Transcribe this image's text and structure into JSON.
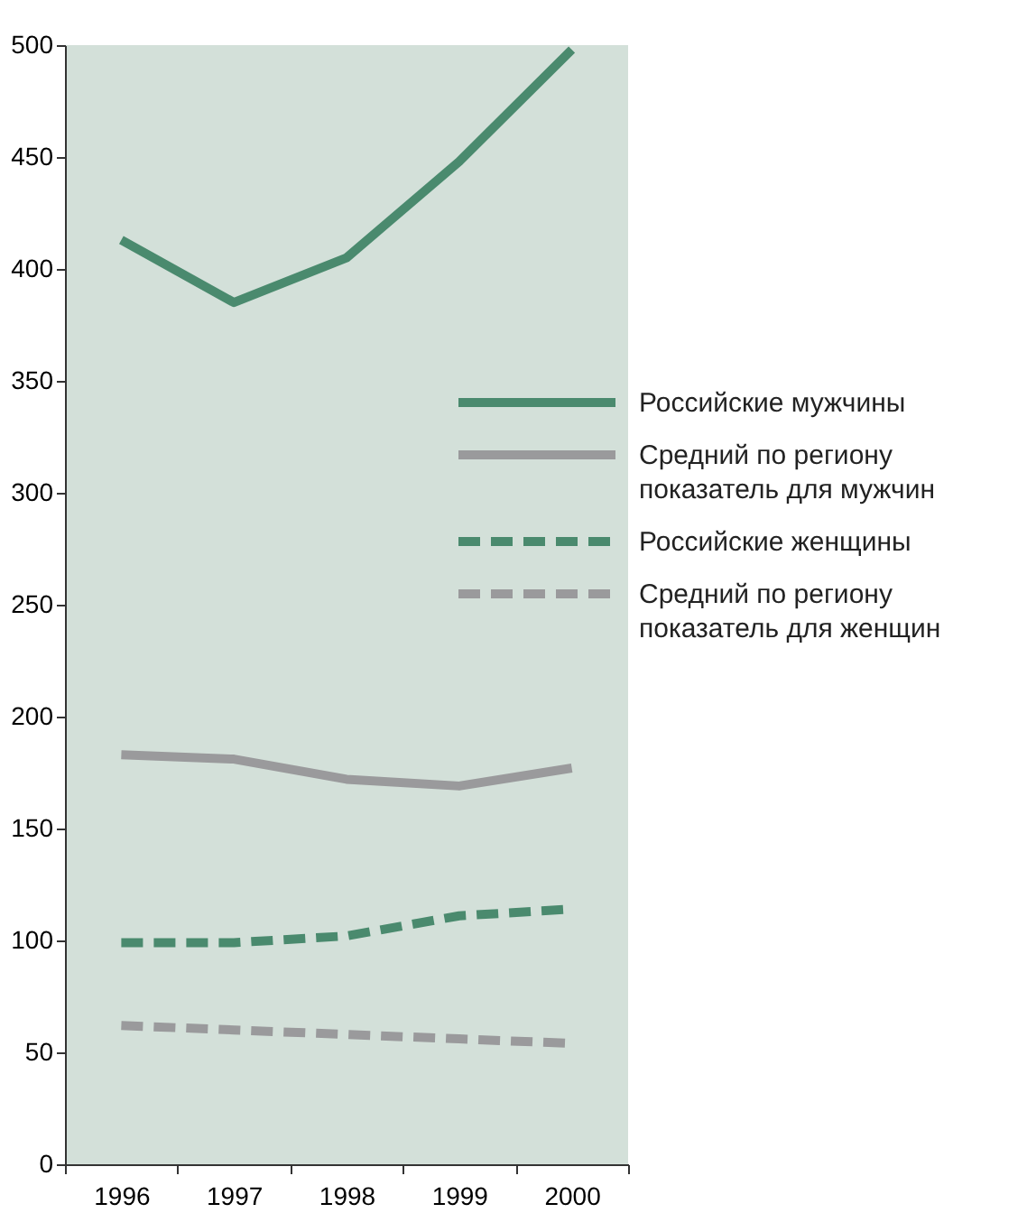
{
  "chart_data": {
    "type": "line",
    "categories": [
      "1996",
      "1997",
      "1998",
      "1999",
      "2000"
    ],
    "series": [
      {
        "name": "Российские мужчины",
        "color": "#4a8a6e",
        "line_style": "solid",
        "values": [
          413,
          385,
          405,
          448,
          498
        ]
      },
      {
        "name": "Средний по региону показатель для мужчин",
        "color": "#9a9a9c",
        "line_style": "solid",
        "values": [
          183,
          181,
          172,
          169,
          177
        ]
      },
      {
        "name": "Российские женщины",
        "color": "#4a8a6e",
        "line_style": "dashed",
        "values": [
          99,
          99,
          102,
          111,
          114
        ]
      },
      {
        "name": "Средний по региону показатель для женщин",
        "color": "#9a9a9c",
        "line_style": "dashed",
        "values": [
          62,
          60,
          58,
          56,
          54
        ]
      }
    ],
    "ylim": [
      0,
      500
    ],
    "yticks": [
      0,
      50,
      100,
      150,
      200,
      250,
      300,
      350,
      400,
      450,
      500
    ],
    "grid": false,
    "marker": "none",
    "legend": "right"
  }
}
